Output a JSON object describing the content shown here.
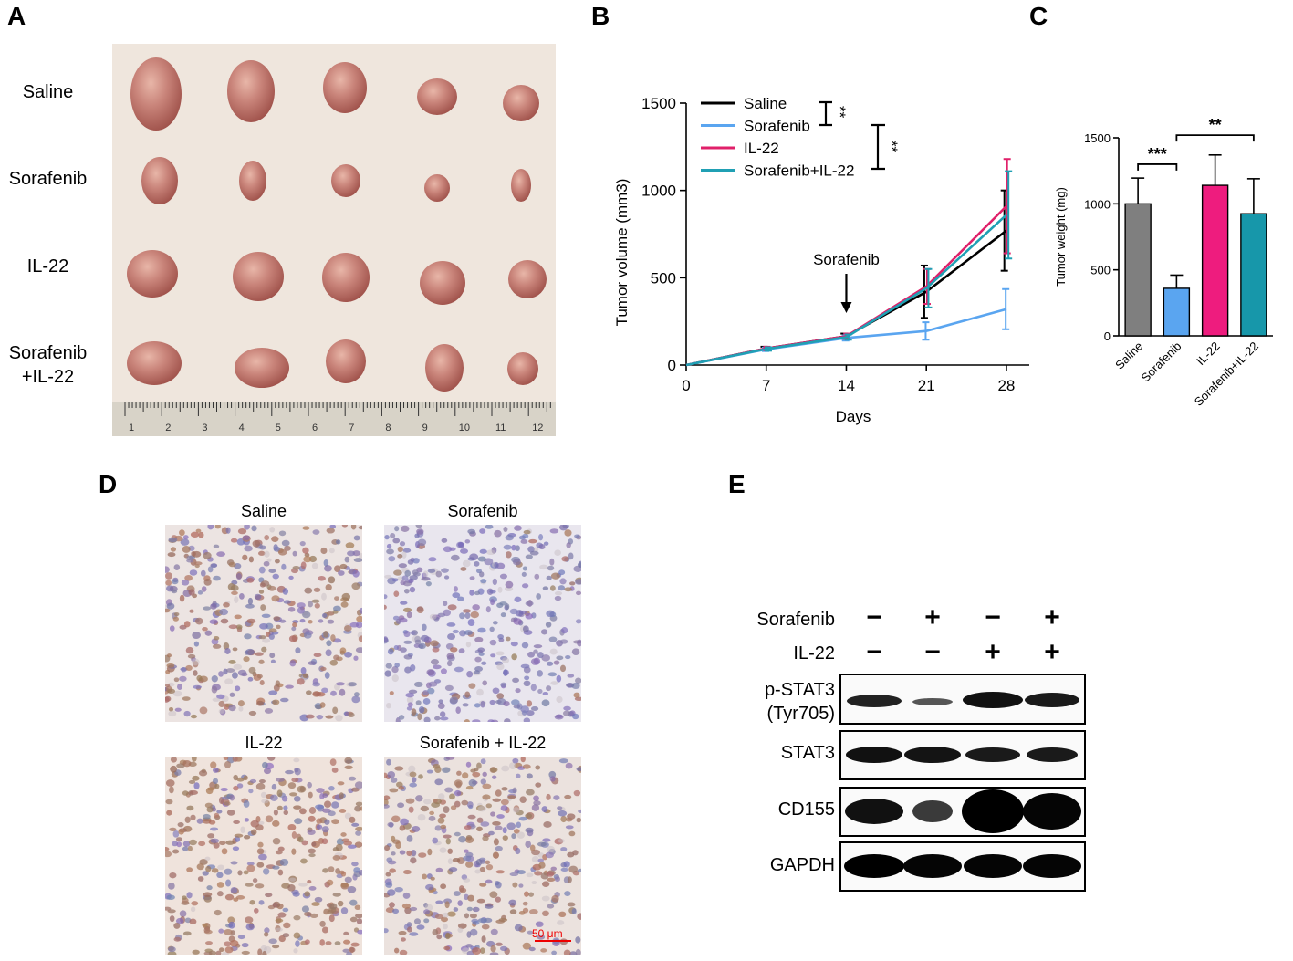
{
  "panels": {
    "a": "A",
    "b": "B",
    "c": "C",
    "d": "D",
    "e": "E"
  },
  "panel_a": {
    "row_labels": [
      [
        "Saline"
      ],
      [
        "Sorafenib"
      ],
      [
        "IL-22"
      ],
      [
        "Sorafenib",
        "+IL-22"
      ]
    ],
    "ruler_numbers": [
      "1",
      "2",
      "3",
      "4",
      "5",
      "6",
      "7",
      "8",
      "9",
      "10",
      "11",
      "12"
    ],
    "colors": {
      "backdrop": "#efe6dd",
      "tumor": "#c9847a"
    }
  },
  "chart_data": [
    {
      "type": "line",
      "panel": "B",
      "xlabel": "Days",
      "ylabel": "Tumor volume (mm3)",
      "x": [
        0,
        7,
        14,
        21,
        28
      ],
      "xlim": [
        0,
        30
      ],
      "ylim": [
        0,
        1500
      ],
      "xticks": [
        "0",
        "7",
        "14",
        "21",
        "28"
      ],
      "yticks": [
        "0",
        "500",
        "1000",
        "1500"
      ],
      "legend_position": "top-left",
      "annotation": "Sorafenib",
      "significance": [
        "**",
        "**"
      ],
      "series": [
        {
          "name": "Saline",
          "color": "#000000",
          "values": [
            0,
            95,
            165,
            420,
            770
          ],
          "err": [
            0,
            10,
            15,
            150,
            230
          ]
        },
        {
          "name": "Sorafenib",
          "color": "#5aa5f0",
          "values": [
            0,
            90,
            155,
            195,
            320
          ],
          "err": [
            0,
            10,
            15,
            50,
            115
          ]
        },
        {
          "name": "IL-22",
          "color": "#e0206a",
          "values": [
            0,
            95,
            165,
            450,
            910
          ],
          "err": [
            0,
            10,
            15,
            100,
            270
          ]
        },
        {
          "name": "Sorafenib+IL-22",
          "color": "#20a0b4",
          "values": [
            0,
            92,
            160,
            440,
            860
          ],
          "err": [
            0,
            10,
            15,
            110,
            250
          ]
        }
      ]
    },
    {
      "type": "bar",
      "panel": "C",
      "ylabel": "Tumor weight (mg)",
      "categories": [
        "Saline",
        "Sorafenib",
        "IL-22",
        "Sorafenib+IL-22"
      ],
      "values": [
        1000,
        360,
        1140,
        925
      ],
      "err": [
        195,
        100,
        230,
        265
      ],
      "colors": [
        "#7f7f7f",
        "#5aa5f0",
        "#ee1c7e",
        "#1797aa"
      ],
      "ylim": [
        0,
        1500
      ],
      "yticks": [
        "0",
        "500",
        "1000",
        "1500"
      ],
      "significance": [
        {
          "label": "***",
          "from": 0,
          "to": 1
        },
        {
          "label": "**",
          "from": 1,
          "to": 3
        }
      ]
    }
  ],
  "panel_d": {
    "titles": [
      "Saline",
      "Sorafenib",
      "IL-22",
      "Sorafenib + IL-22"
    ],
    "scale_bar": "50 μm"
  },
  "panel_e": {
    "header_rows": [
      {
        "label": "Sorafenib",
        "signs": [
          "−",
          "+",
          "−",
          "+"
        ]
      },
      {
        "label": "IL-22",
        "signs": [
          "−",
          "−",
          "+",
          "+"
        ]
      }
    ],
    "blots": [
      {
        "label": [
          "p-STAT3",
          "(Tyr705)"
        ]
      },
      {
        "label": [
          "STAT3"
        ]
      },
      {
        "label": [
          "CD155"
        ]
      },
      {
        "label": [
          "GAPDH"
        ]
      }
    ]
  }
}
